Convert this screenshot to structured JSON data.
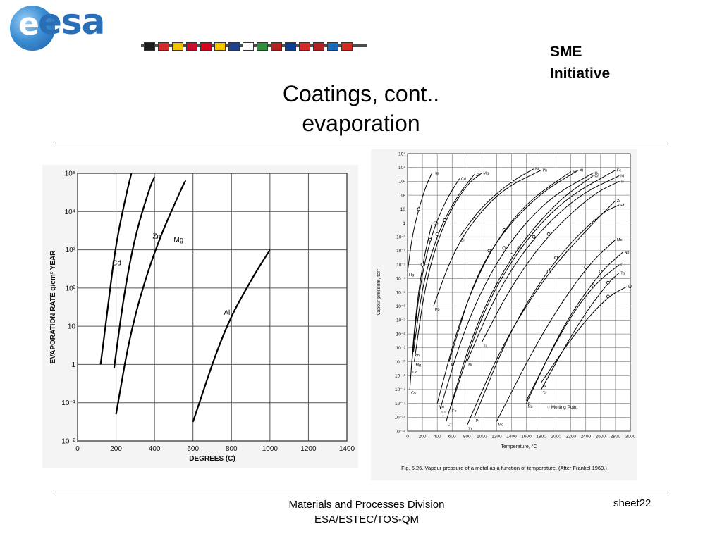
{
  "header": {
    "logo_text": "esa",
    "flags": [
      "#1b1b1b",
      "#d62b2b",
      "#f2c200",
      "#c8102e",
      "#d5001c",
      "#f5c400",
      "#1f3f8f",
      "#ffffff",
      "#2f8f3f",
      "#b22222",
      "#0b3d91",
      "#d62b2b",
      "#b22222",
      "#1c6bb8",
      "#d52b1e"
    ],
    "sme_line1": "SME",
    "sme_line2": "Initiative"
  },
  "title": {
    "line1": "Coatings, cont..",
    "line2": "evaporation"
  },
  "footer": {
    "line1": "Materials and Processes Division",
    "line2": "ESA/ESTEC/TOS-QM",
    "sheet": "sheet22"
  },
  "chart_data": [
    {
      "type": "line",
      "xlabel": "DEGREES (C)",
      "ylabel": "EVAPORATION RATE g/cm² YEAR",
      "xlim": [
        0,
        1400
      ],
      "ylim_log10": [
        -2,
        5
      ],
      "y_scale": "log",
      "grid": true,
      "x_ticks": [
        "0",
        "200",
        "400",
        "600",
        "800",
        "1000",
        "1200",
        "1400"
      ],
      "y_ticks": [
        "10⁻²",
        "10⁻¹",
        "1",
        "10",
        "10²",
        "10³",
        "10⁴",
        "10⁵"
      ],
      "series": [
        {
          "name": "Cd",
          "label_at": [
            180,
            2.6
          ],
          "points": [
            [
              120,
              0
            ],
            [
              160,
              1.6
            ],
            [
              200,
              3.2
            ],
            [
              260,
              4.6
            ],
            [
              280,
              5
            ]
          ]
        },
        {
          "name": "Zn",
          "label_at": [
            390,
            3.3
          ],
          "points": [
            [
              190,
              -0.1
            ],
            [
              240,
              1.8
            ],
            [
              300,
              3.4
            ],
            [
              380,
              4.7
            ],
            [
              400,
              4.9
            ]
          ]
        },
        {
          "name": "Mg",
          "label_at": [
            500,
            3.2
          ],
          "points": [
            [
              200,
              -1.3
            ],
            [
              280,
              1.0
            ],
            [
              400,
              3.0
            ],
            [
              540,
              4.6
            ],
            [
              560,
              4.8
            ]
          ]
        },
        {
          "name": "Al",
          "label_at": [
            760,
            1.3
          ],
          "points": [
            [
              600,
              -1.5
            ],
            [
              760,
              0.9
            ],
            [
              900,
              2.2
            ],
            [
              1000,
              3.0
            ]
          ]
        }
      ]
    },
    {
      "type": "line",
      "title": "Fig. 5.26. Vapour pressure of a metal as a function of temperature. (After Frankel 1969.)",
      "xlabel": "Temperature, °C",
      "ylabel": "Vapour pressure, torr",
      "xlim": [
        0,
        3000
      ],
      "ylim_log10": [
        -15,
        5
      ],
      "y_scale": "log",
      "grid": true,
      "x_ticks": [
        "0",
        "200",
        "400",
        "600",
        "800",
        "1000",
        "1200",
        "1400",
        "1600",
        "1800",
        "2000",
        "2200",
        "2400",
        "2600",
        "2800",
        "3000"
      ],
      "y_ticks": [
        "10⁵",
        "10⁴",
        "10³",
        "10²",
        "10",
        "1",
        "10⁻¹",
        "10⁻²",
        "10⁻³",
        "10⁻⁴",
        "10⁻⁵",
        "10⁻⁶",
        "10⁻⁷",
        "10⁻⁸",
        "10⁻⁹",
        "10⁻¹⁰",
        "10⁻¹¹",
        "10⁻¹²",
        "10⁻¹³",
        "10⁻¹⁴",
        "10⁻¹⁵"
      ],
      "legend": "○ Melting Point",
      "series": [
        {
          "name": "Hg",
          "points": [
            [
              0,
              -3.5
            ],
            [
              60,
              -1
            ],
            [
              150,
              1
            ],
            [
              250,
              2.7
            ],
            [
              330,
              3.6
            ]
          ]
        },
        {
          "name": "Cd",
          "points": [
            [
              50,
              -10.5
            ],
            [
              150,
              -5
            ],
            [
              300,
              -1.2
            ],
            [
              500,
              1.5
            ],
            [
              700,
              3.2
            ]
          ]
        },
        {
          "name": "Zn",
          "points": [
            [
              80,
              -9.3
            ],
            [
              200,
              -4.5
            ],
            [
              400,
              -0.8
            ],
            [
              650,
              1.8
            ],
            [
              900,
              3.5
            ]
          ]
        },
        {
          "name": "Mg",
          "points": [
            [
              90,
              -10
            ],
            [
              250,
              -4
            ],
            [
              500,
              0.2
            ],
            [
              800,
              2.8
            ],
            [
              1000,
              3.6
            ]
          ]
        },
        {
          "name": "Cs",
          "points": [
            [
              30,
              -12
            ],
            [
              100,
              -7
            ],
            [
              200,
              -3
            ],
            [
              330,
              0
            ]
          ]
        },
        {
          "name": "Pb",
          "points": [
            [
              350,
              -6
            ],
            [
              600,
              -2.3
            ],
            [
              900,
              0.3
            ],
            [
              1300,
              2.5
            ],
            [
              1800,
              3.8
            ]
          ]
        },
        {
          "name": "Bi",
          "points": [
            [
              700,
              -1
            ],
            [
              1000,
              1.2
            ],
            [
              1400,
              3
            ],
            [
              1700,
              3.9
            ]
          ]
        },
        {
          "name": "Al",
          "points": [
            [
              560,
              -10
            ],
            [
              900,
              -4
            ],
            [
              1300,
              -0.5
            ],
            [
              1800,
              2.2
            ],
            [
              2300,
              3.8
            ]
          ]
        },
        {
          "name": "Mn",
          "points": [
            [
              400,
              -13
            ],
            [
              700,
              -7
            ],
            [
              1100,
              -2
            ],
            [
              1600,
              1.5
            ],
            [
              2200,
              3.7
            ]
          ]
        },
        {
          "name": "Cu",
          "points": [
            [
              440,
              -13.4
            ],
            [
              800,
              -7
            ],
            [
              1300,
              -1.8
            ],
            [
              1900,
              1.8
            ],
            [
              2500,
              3.6
            ]
          ]
        },
        {
          "name": "Fe",
          "points": [
            [
              580,
              -13.3
            ],
            [
              1000,
              -6.5
            ],
            [
              1500,
              -1.8
            ],
            [
              2100,
              1.7
            ],
            [
              2800,
              3.8
            ]
          ]
        },
        {
          "name": "Cr",
          "points": [
            [
              520,
              -14.3
            ],
            [
              900,
              -7.5
            ],
            [
              1400,
              -2.3
            ],
            [
              2000,
              1.5
            ],
            [
              2500,
              3.4
            ]
          ]
        },
        {
          "name": "Ni",
          "points": [
            [
              800,
              -10
            ],
            [
              1200,
              -5
            ],
            [
              1700,
              -1
            ],
            [
              2300,
              2
            ],
            [
              2850,
              3.4
            ]
          ]
        },
        {
          "name": "Ti",
          "points": [
            [
              1000,
              -8.6
            ],
            [
              1400,
              -4.5
            ],
            [
              1900,
              -0.8
            ],
            [
              2500,
              2.1
            ],
            [
              2850,
              3
            ]
          ]
        },
        {
          "name": "Pt",
          "points": [
            [
              900,
              -14
            ],
            [
              1400,
              -7.5
            ],
            [
              2000,
              -2.5
            ],
            [
              2600,
              0.7
            ],
            [
              2850,
              1.3
            ]
          ]
        },
        {
          "name": "Zr",
          "points": [
            [
              800,
              -14.6
            ],
            [
              1300,
              -8.5
            ],
            [
              1900,
              -3.5
            ],
            [
              2500,
              0
            ],
            [
              2800,
              1.6
            ]
          ]
        },
        {
          "name": "Mo",
          "points": [
            [
              1200,
              -14.3
            ],
            [
              1800,
              -8
            ],
            [
              2400,
              -3.2
            ],
            [
              2800,
              -1.2
            ]
          ]
        },
        {
          "name": "Nb",
          "points": [
            [
              1600,
              -13
            ],
            [
              2100,
              -7.3
            ],
            [
              2600,
              -3.5
            ],
            [
              2900,
              -2.1
            ]
          ]
        },
        {
          "name": "C",
          "points": [
            [
              1600,
              -12.8
            ],
            [
              2100,
              -7.5
            ],
            [
              2500,
              -4.5
            ],
            [
              2850,
              -3
            ]
          ]
        },
        {
          "name": "Ta",
          "points": [
            [
              1800,
              -12
            ],
            [
              2300,
              -7.2
            ],
            [
              2700,
              -4.3
            ],
            [
              2850,
              -3.6
            ]
          ]
        },
        {
          "name": "W",
          "points": [
            [
              1800,
              -11.5
            ],
            [
              2300,
              -7.6
            ],
            [
              2700,
              -5.3
            ],
            [
              2950,
              -4.6
            ]
          ]
        }
      ]
    }
  ]
}
